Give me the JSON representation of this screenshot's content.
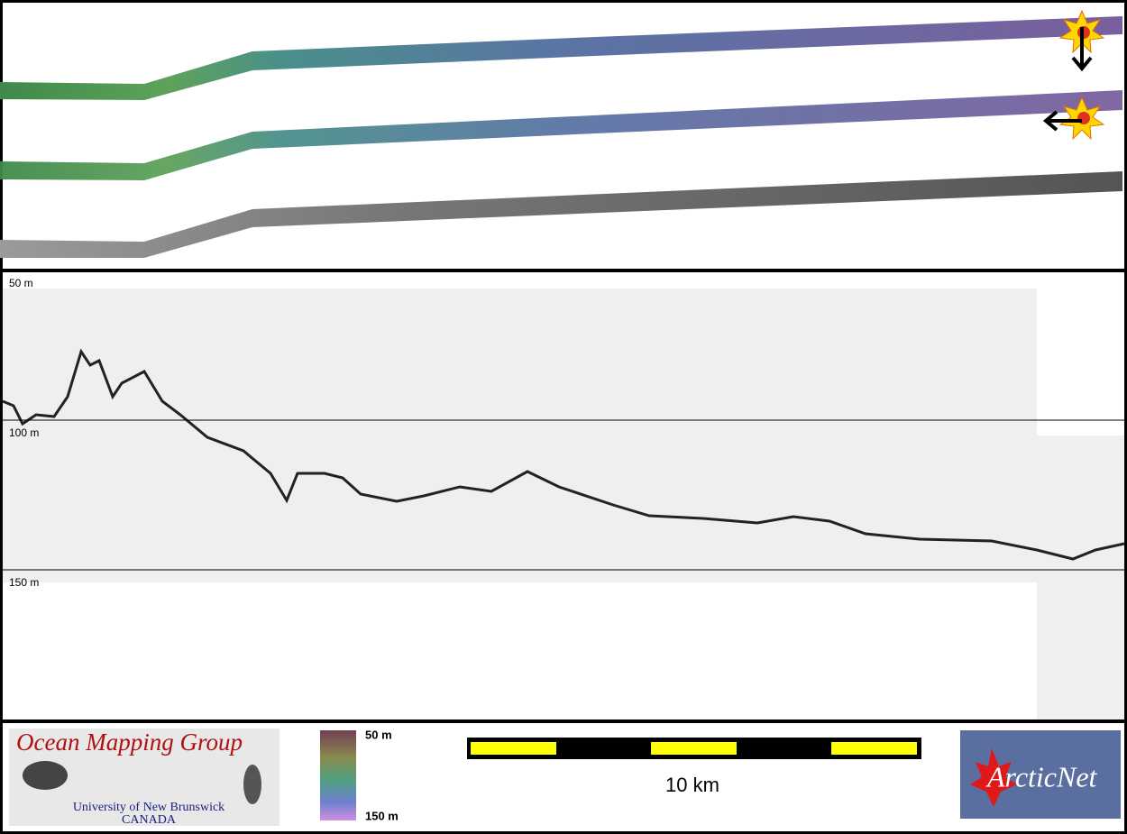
{
  "profile": {
    "depth_labels": [
      "50 m",
      "100 m",
      "150 m"
    ]
  },
  "legend": {
    "colorbar_top": "50 m",
    "colorbar_bottom": "150 m",
    "scale_label": "10 km"
  },
  "logos": {
    "omg_title": "Ocean Mapping Group",
    "omg_university": "University of New Brunswick",
    "omg_country": "CANADA",
    "arcticnet": "ArcticNet"
  }
}
